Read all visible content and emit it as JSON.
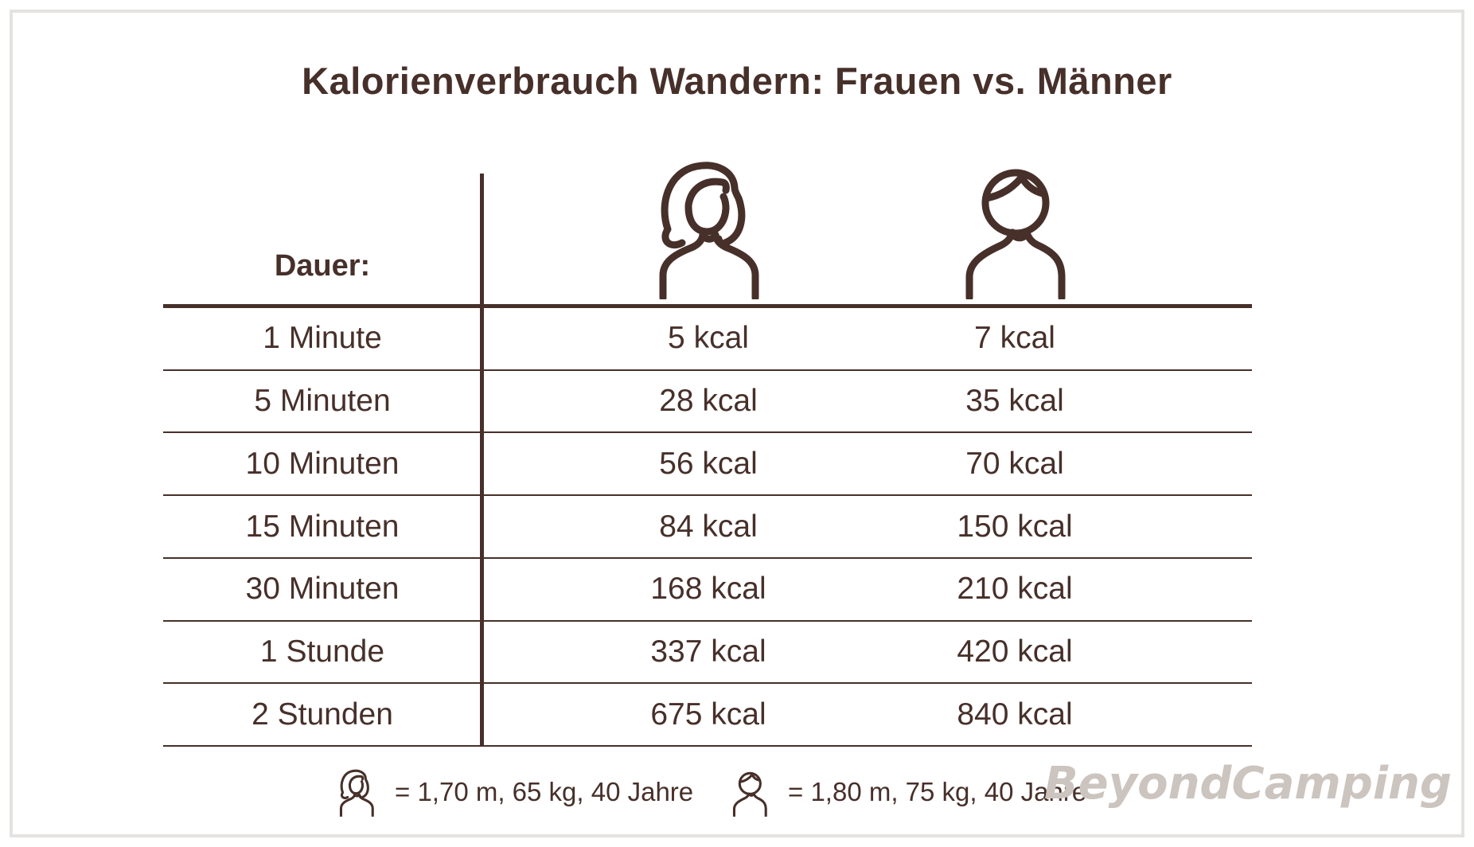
{
  "title": "Kalorienverbrauch Wandern: Frauen vs. Männer",
  "table": {
    "duration_header": "Dauer:",
    "column_icons": [
      "woman",
      "man"
    ],
    "rows": [
      {
        "duration": "1 Minute",
        "women": "5 kcal",
        "men": "7 kcal"
      },
      {
        "duration": "5 Minuten",
        "women": "28 kcal",
        "men": "35 kcal"
      },
      {
        "duration": "10 Minuten",
        "women": "56 kcal",
        "men": "70 kcal"
      },
      {
        "duration": "15 Minuten",
        "women": "84 kcal",
        "men": "150 kcal"
      },
      {
        "duration": "30 Minuten",
        "women": "168 kcal",
        "men": "210 kcal"
      },
      {
        "duration": "1 Stunde",
        "women": "337 kcal",
        "men": "420 kcal"
      },
      {
        "duration": "2 Stunden",
        "women": "675 kcal",
        "men": "840 kcal"
      }
    ]
  },
  "legend": {
    "woman_label": "= 1,70 m, 65 kg, 40 Jahre",
    "man_label": "= 1,80 m, 75 kg, 40 Jahre"
  },
  "watermark": "BeyondCamping",
  "colors": {
    "brown": "#47302a",
    "frame": "#e4e3e2",
    "watermark": "#cbc4bf"
  },
  "chart_data": {
    "type": "table",
    "title": "Kalorienverbrauch Wandern: Frauen vs. Männer",
    "categories": [
      "1 Minute",
      "5 Minuten",
      "10 Minuten",
      "15 Minuten",
      "30 Minuten",
      "1 Stunde",
      "2 Stunden"
    ],
    "series": [
      {
        "name": "Frauen (1,70 m, 65 kg, 40 Jahre)",
        "unit": "kcal",
        "values": [
          5,
          28,
          56,
          84,
          168,
          337,
          675
        ]
      },
      {
        "name": "Männer (1,80 m, 75 kg, 40 Jahre)",
        "unit": "kcal",
        "values": [
          7,
          35,
          70,
          150,
          210,
          420,
          840
        ]
      }
    ],
    "legend_position": "bottom"
  }
}
